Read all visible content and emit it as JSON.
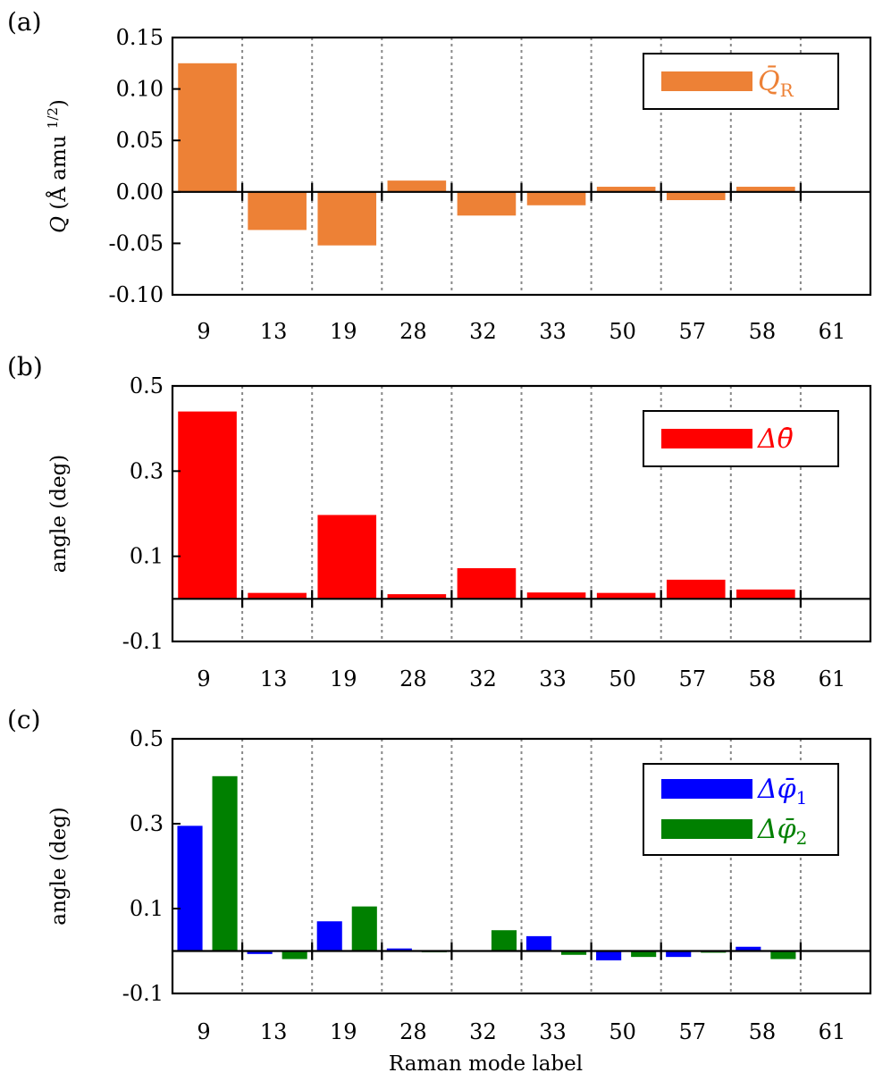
{
  "chart_data": [
    {
      "panel_label": "(a)",
      "type": "bar",
      "categories": [
        "9",
        "13",
        "19",
        "28",
        "32",
        "33",
        "50",
        "57",
        "58",
        "61"
      ],
      "ylabel_symbol": "Q",
      "ylabel_units": "(Å amu",
      "ylabel_exponent": "1/2",
      "ylabel_close": ")",
      "xlabel": "",
      "ylim": [
        -0.1,
        0.15
      ],
      "yticks": [
        0.15,
        0.1,
        0.05,
        0.0,
        -0.05,
        -0.1
      ],
      "ytick_labels": [
        "0.15",
        "0.10",
        "0.05",
        "0.00",
        "-0.05",
        "-0.10"
      ],
      "grid": "vertical dotted separators",
      "legend_position": "top-right",
      "series": [
        {
          "name": "Q̄R",
          "legend_main": "Q̄",
          "legend_sub": "R",
          "color": "#ed8136",
          "values": [
            0.125,
            -0.037,
            -0.052,
            0.011,
            -0.023,
            -0.013,
            0.005,
            -0.008,
            0.005,
            0.0
          ]
        }
      ]
    },
    {
      "panel_label": "(b)",
      "type": "bar",
      "categories": [
        "9",
        "13",
        "19",
        "28",
        "32",
        "33",
        "50",
        "57",
        "58",
        "61"
      ],
      "ylabel": "angle (deg)",
      "xlabel": "",
      "ylim": [
        -0.1,
        0.5
      ],
      "yticks": [
        0.5,
        0.3,
        0.1,
        -0.1
      ],
      "ytick_labels": [
        "0.5",
        "0.3",
        "0.1",
        "-0.1"
      ],
      "grid": "vertical dotted separators",
      "legend_position": "top-right",
      "series": [
        {
          "name": "Δθ̄",
          "legend_main": "Δθ̄",
          "legend_sub": "",
          "color": "#ff0000",
          "values": [
            0.44,
            0.014,
            0.197,
            0.011,
            0.072,
            0.015,
            0.014,
            0.045,
            0.022,
            0.0
          ]
        }
      ]
    },
    {
      "panel_label": "(c)",
      "type": "bar",
      "categories": [
        "9",
        "13",
        "19",
        "28",
        "32",
        "33",
        "50",
        "57",
        "58",
        "61"
      ],
      "ylabel": "angle (deg)",
      "xlabel": "Raman mode label",
      "ylim": [
        -0.1,
        0.5
      ],
      "yticks": [
        0.5,
        0.3,
        0.1,
        -0.1
      ],
      "ytick_labels": [
        "0.5",
        "0.3",
        "0.1",
        "-0.1"
      ],
      "grid": "vertical dotted separators",
      "legend_position": "top-right",
      "series": [
        {
          "name": "Δφ̄1",
          "legend_main": "Δφ̄",
          "legend_sub": "1",
          "color": "#0000ff",
          "values": [
            0.295,
            -0.007,
            0.07,
            0.006,
            0.0,
            0.035,
            -0.022,
            -0.014,
            0.01,
            0.0
          ]
        },
        {
          "name": "Δφ̄2",
          "legend_main": "Δφ̄",
          "legend_sub": "2",
          "color": "#008000",
          "values": [
            0.412,
            -0.019,
            0.105,
            -0.003,
            0.049,
            -0.009,
            -0.014,
            -0.004,
            -0.019,
            0.0
          ]
        }
      ]
    }
  ]
}
